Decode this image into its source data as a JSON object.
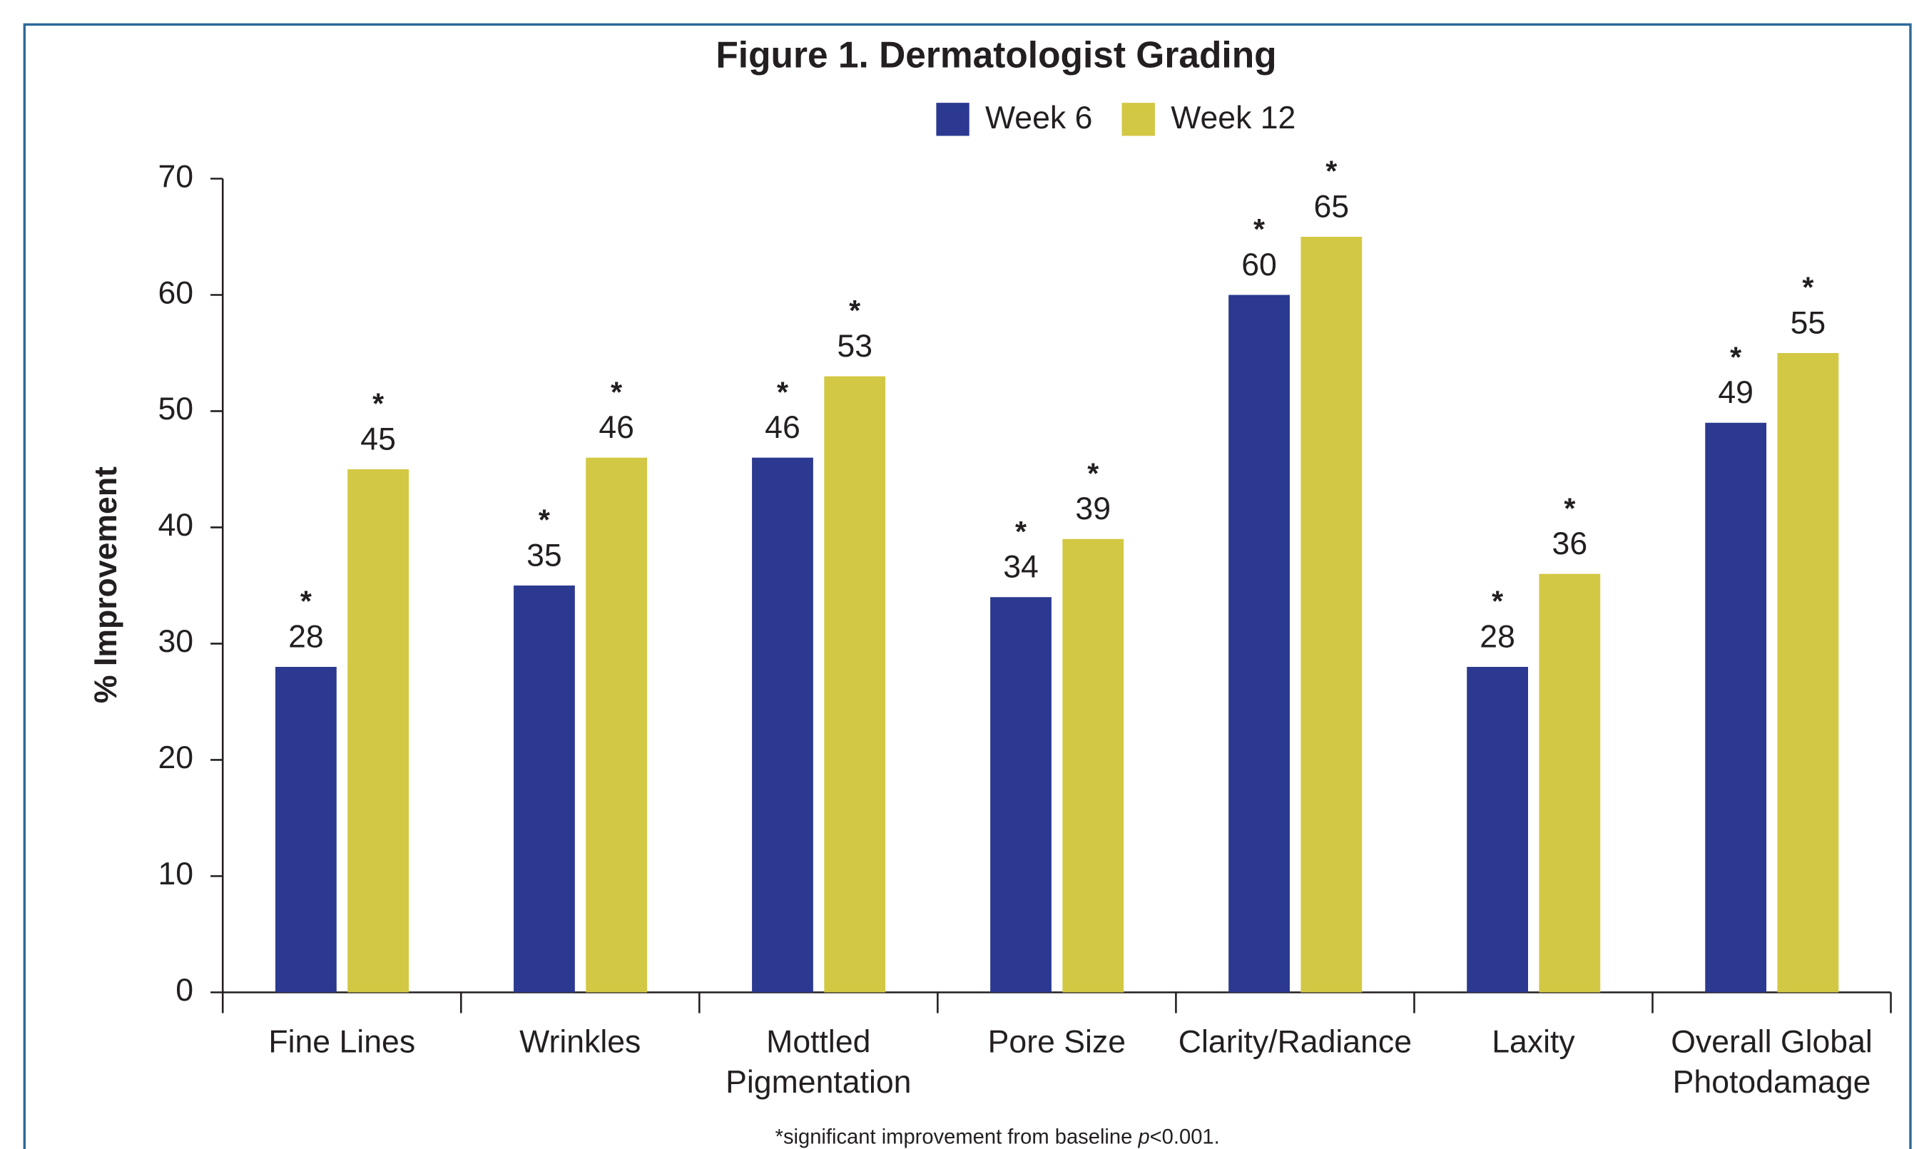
{
  "chart_data": {
    "type": "bar",
    "title": "Figure 1. Dermatologist Grading",
    "y_label": "% Improvement",
    "categories": [
      "Fine Lines",
      "Wrinkles",
      "Mottled Pigmentation",
      "Pore Size",
      "Clarity/Radiance",
      "Laxity",
      "Overall Global Photodamage"
    ],
    "series": [
      {
        "name": "Week 6",
        "color": "#2b3990",
        "values": [
          28,
          35,
          46,
          34,
          60,
          28,
          49
        ]
      },
      {
        "name": "Week 12",
        "color": "#d2c843",
        "values": [
          45,
          46,
          53,
          39,
          65,
          36,
          55
        ]
      }
    ],
    "significance_marker": "*",
    "ylim": [
      0,
      70
    ],
    "yticks": [
      0,
      10,
      20,
      30,
      40,
      50,
      60,
      70
    ],
    "legend": "top",
    "footnote": {
      "before": "*significant improvement from baseline ",
      "italic": "p",
      "after": "<0.001."
    }
  }
}
